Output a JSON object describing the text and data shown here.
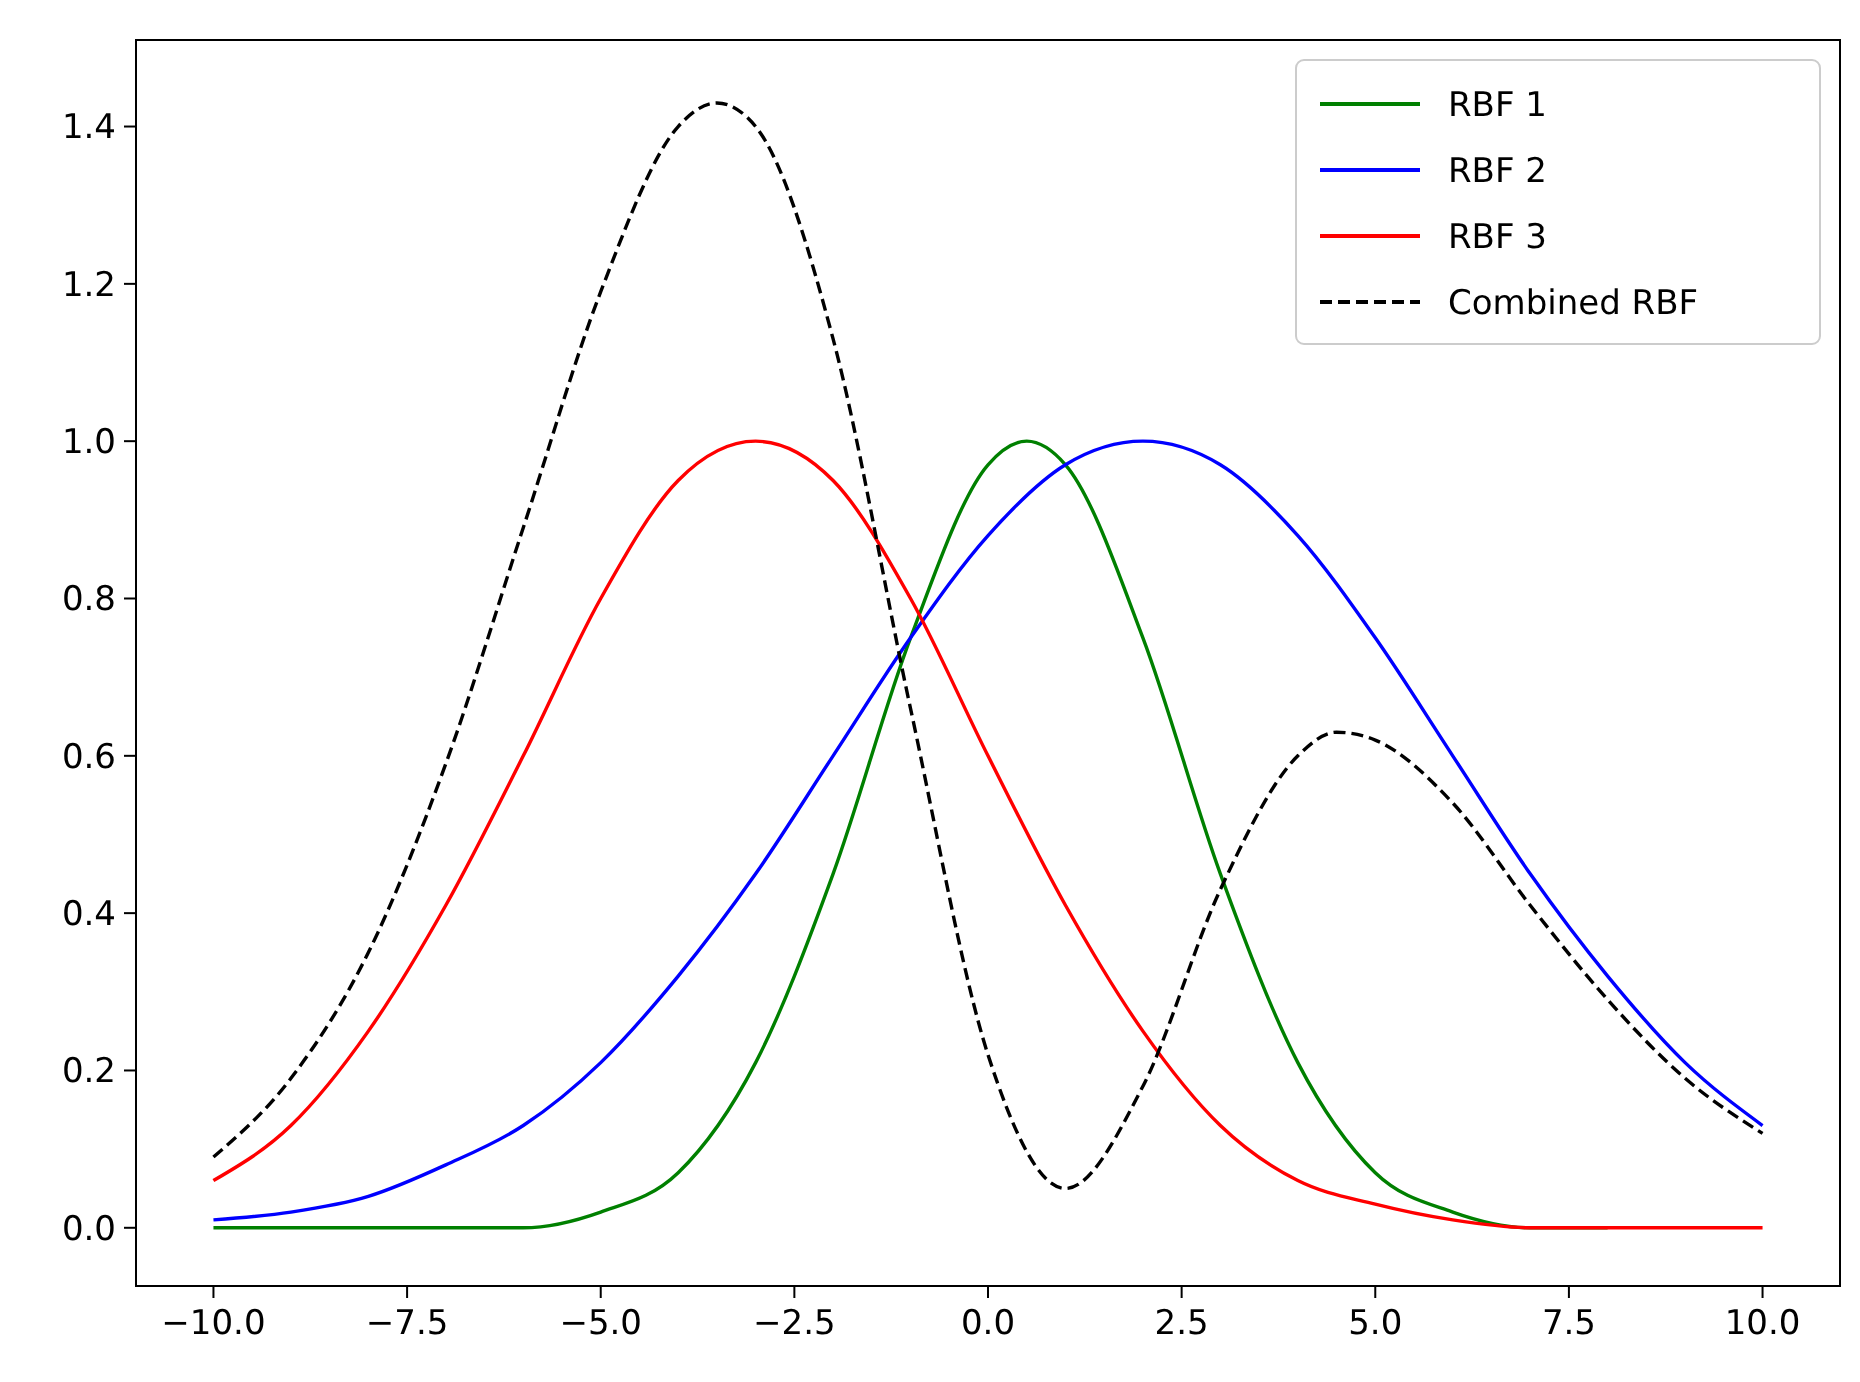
{
  "chart_data": {
    "type": "line",
    "xlim": [
      -11,
      11
    ],
    "ylim": [
      -0.074,
      1.51
    ],
    "xticks": [
      {
        "value": -10,
        "label": "−10.0"
      },
      {
        "value": -7.5,
        "label": "−7.5"
      },
      {
        "value": -5,
        "label": "−5.0"
      },
      {
        "value": -2.5,
        "label": "−2.5"
      },
      {
        "value": 0,
        "label": "0.0"
      },
      {
        "value": 2.5,
        "label": "2.5"
      },
      {
        "value": 5,
        "label": "5.0"
      },
      {
        "value": 7.5,
        "label": "7.5"
      },
      {
        "value": 10,
        "label": "10.0"
      }
    ],
    "yticks": [
      {
        "value": 0,
        "label": "0.0"
      },
      {
        "value": 0.2,
        "label": "0.2"
      },
      {
        "value": 0.4,
        "label": "0.4"
      },
      {
        "value": 0.6,
        "label": "0.6"
      },
      {
        "value": 0.8,
        "label": "0.8"
      },
      {
        "value": 1,
        "label": "1.0"
      },
      {
        "value": 1.2,
        "label": "1.2"
      },
      {
        "value": 1.4,
        "label": "1.4"
      }
    ],
    "grid": false,
    "legend": "top right",
    "series": [
      {
        "name": "RBF 1",
        "color": "#008000",
        "line_style": "solid",
        "x": [
          -10,
          -9,
          -8,
          -7,
          -6,
          -5,
          -4,
          -3,
          -2,
          -1,
          0,
          0.5,
          1,
          2,
          3,
          4,
          5,
          6,
          7,
          8
        ],
        "values": [
          0,
          0,
          0,
          0,
          0,
          0.02,
          0.07,
          0.21,
          0.45,
          0.75,
          0.97,
          1.0,
          0.97,
          0.75,
          0.45,
          0.21,
          0.07,
          0.02,
          0,
          0
        ]
      },
      {
        "name": "RBF 2",
        "color": "#0000ff",
        "line_style": "solid",
        "x": [
          -10,
          -9,
          -8,
          -7,
          -6,
          -5,
          -4,
          -3,
          -2,
          -1,
          0,
          1,
          2,
          3,
          4,
          5,
          6,
          7,
          8,
          9,
          10
        ],
        "values": [
          0.01,
          0.02,
          0.04,
          0.08,
          0.13,
          0.21,
          0.32,
          0.45,
          0.6,
          0.75,
          0.88,
          0.97,
          1.0,
          0.97,
          0.88,
          0.75,
          0.6,
          0.45,
          0.32,
          0.21,
          0.13
        ]
      },
      {
        "name": "RBF 3",
        "color": "#ff0000",
        "line_style": "solid",
        "x": [
          -10,
          -9,
          -8,
          -7,
          -6,
          -5,
          -4,
          -3,
          -2,
          -1,
          0,
          1,
          2,
          3,
          4,
          5,
          6,
          7,
          8,
          9,
          10
        ],
        "values": [
          0.06,
          0.13,
          0.25,
          0.41,
          0.6,
          0.8,
          0.95,
          1.0,
          0.95,
          0.8,
          0.6,
          0.41,
          0.25,
          0.13,
          0.06,
          0.03,
          0.01,
          0,
          0,
          0,
          0
        ]
      },
      {
        "name": "Combined RBF",
        "color": "#000000",
        "line_style": "dashed",
        "x": [
          -10,
          -9,
          -8,
          -7,
          -6,
          -5,
          -4,
          -3.5,
          -3,
          -2,
          -1,
          0,
          1,
          2,
          3,
          4,
          4.5,
          5,
          6,
          7,
          8,
          9,
          10
        ],
        "values": [
          0.09,
          0.19,
          0.35,
          0.59,
          0.89,
          1.19,
          1.4,
          1.43,
          1.4,
          1.13,
          0.66,
          0.22,
          0.05,
          0.18,
          0.43,
          0.6,
          0.63,
          0.62,
          0.54,
          0.41,
          0.29,
          0.19,
          0.12
        ]
      }
    ]
  }
}
